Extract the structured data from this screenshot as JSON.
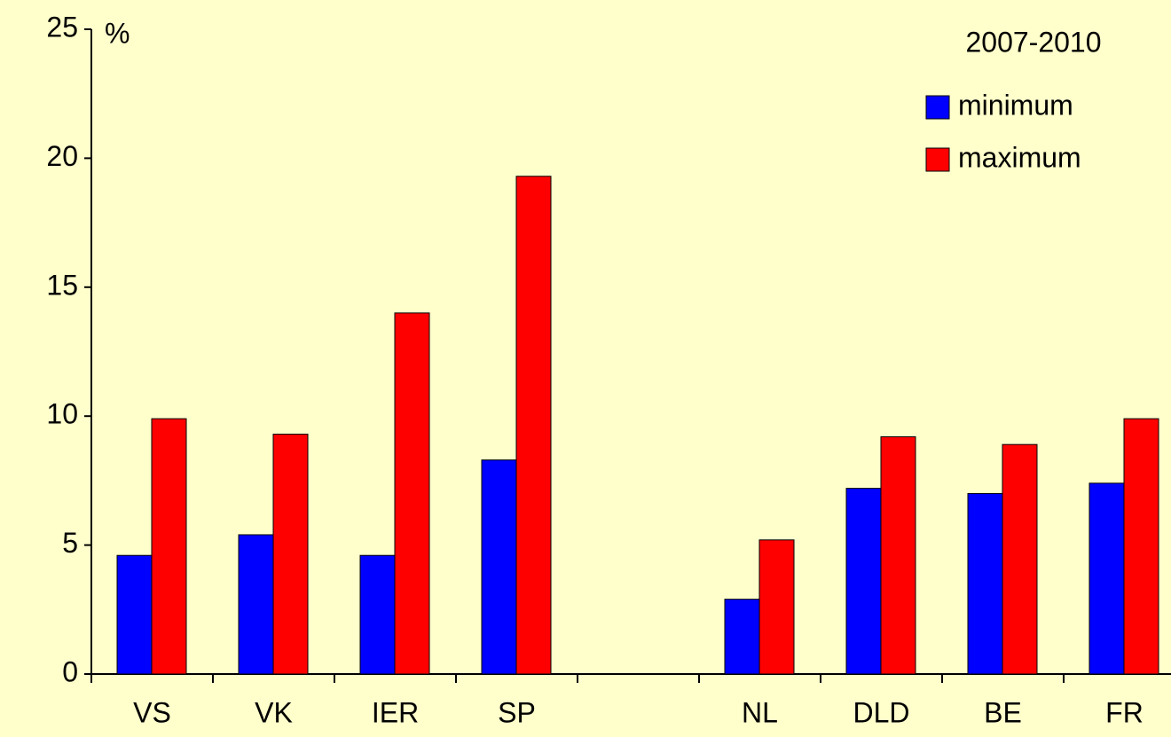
{
  "chart_data": {
    "type": "bar",
    "y_label": "%",
    "legend_title": "2007-2010",
    "legend": "top-right",
    "categories": [
      "VS",
      "VK",
      "IER",
      "SP",
      null,
      "NL",
      "DLD",
      "BE",
      "FR"
    ],
    "series": [
      {
        "name": "minimum",
        "color": "#0000ff",
        "values": [
          4.6,
          5.4,
          4.6,
          8.3,
          null,
          2.9,
          7.2,
          7.0,
          7.4
        ]
      },
      {
        "name": "maximum",
        "color": "#ff0000",
        "values": [
          9.9,
          9.3,
          14.0,
          19.3,
          null,
          5.2,
          9.2,
          8.9,
          9.9
        ]
      }
    ],
    "ylim": [
      0,
      25
    ],
    "yticks": [
      0,
      5,
      10,
      15,
      20,
      25
    ],
    "grid": false
  }
}
